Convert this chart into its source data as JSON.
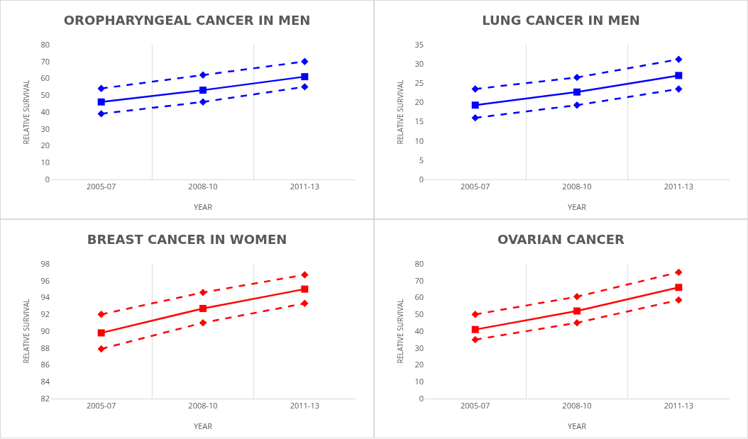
{
  "chart_data": [
    {
      "type": "line",
      "title": "OROPHARYNGEAL CANCER IN MEN",
      "xlabel": "YEAR",
      "ylabel": "RELATIVE SURVIVAL",
      "categories": [
        "2005-07",
        "2008-10",
        "2011-13"
      ],
      "ylim": [
        0,
        80
      ],
      "yticks": [
        0,
        10,
        20,
        30,
        40,
        50,
        60,
        70,
        80
      ],
      "grid": "x",
      "series": [
        {
          "color": "#0000ff",
          "values": [
            54,
            62,
            70
          ],
          "marker": "diamond",
          "line_style": "dashed"
        },
        {
          "color": "#0000ff",
          "values": [
            46,
            53,
            61
          ],
          "marker": "square",
          "line_style": "solid"
        },
        {
          "color": "#0000ff",
          "values": [
            39,
            46,
            55
          ],
          "marker": "diamond",
          "line_style": "dashed"
        }
      ]
    },
    {
      "type": "line",
      "title": "LUNG CANCER IN MEN",
      "xlabel": "YEAR",
      "ylabel": "RELATIVE SURVIVAL",
      "categories": [
        "2005-07",
        "2008-10",
        "2011-13"
      ],
      "ylim": [
        0,
        35
      ],
      "yticks": [
        0,
        5,
        10,
        15,
        20,
        25,
        30,
        35
      ],
      "grid": "x",
      "series": [
        {
          "color": "#0000ff",
          "values": [
            23.5,
            26.5,
            31.2
          ],
          "marker": "diamond",
          "line_style": "dashed"
        },
        {
          "color": "#0000ff",
          "values": [
            19.3,
            22.7,
            27
          ],
          "marker": "square",
          "line_style": "solid"
        },
        {
          "color": "#0000ff",
          "values": [
            16,
            19.3,
            23.5
          ],
          "marker": "diamond",
          "line_style": "dashed"
        }
      ]
    },
    {
      "type": "line",
      "title": "BREAST CANCER IN WOMEN",
      "xlabel": "YEAR",
      "ylabel": "RELATIVE SURVIVAL",
      "categories": [
        "2005-07",
        "2008-10",
        "2011-13"
      ],
      "ylim": [
        82,
        98
      ],
      "yticks": [
        82,
        84,
        86,
        88,
        90,
        92,
        94,
        96,
        98
      ],
      "grid": "x",
      "series": [
        {
          "color": "#ff0000",
          "values": [
            92,
            94.6,
            96.7
          ],
          "marker": "diamond",
          "line_style": "dashed"
        },
        {
          "color": "#ff0000",
          "values": [
            89.8,
            92.7,
            95
          ],
          "marker": "square",
          "line_style": "solid"
        },
        {
          "color": "#ff0000",
          "values": [
            87.9,
            91,
            93.3
          ],
          "marker": "diamond",
          "line_style": "dashed"
        }
      ]
    },
    {
      "type": "line",
      "title": "OVARIAN CANCER",
      "xlabel": "YEAR",
      "ylabel": "RELATIVE SURVIVAL",
      "categories": [
        "2005-07",
        "2008-10",
        "2011-13"
      ],
      "ylim": [
        0,
        80
      ],
      "yticks": [
        0,
        10,
        20,
        30,
        40,
        50,
        60,
        70,
        80
      ],
      "grid": "x",
      "series": [
        {
          "color": "#ff0000",
          "values": [
            50,
            60.5,
            75
          ],
          "marker": "diamond",
          "line_style": "dashed"
        },
        {
          "color": "#ff0000",
          "values": [
            41,
            52,
            66
          ],
          "marker": "square",
          "line_style": "solid"
        },
        {
          "color": "#ff0000",
          "values": [
            35,
            45,
            58.5
          ],
          "marker": "diamond",
          "line_style": "dashed"
        }
      ]
    }
  ]
}
